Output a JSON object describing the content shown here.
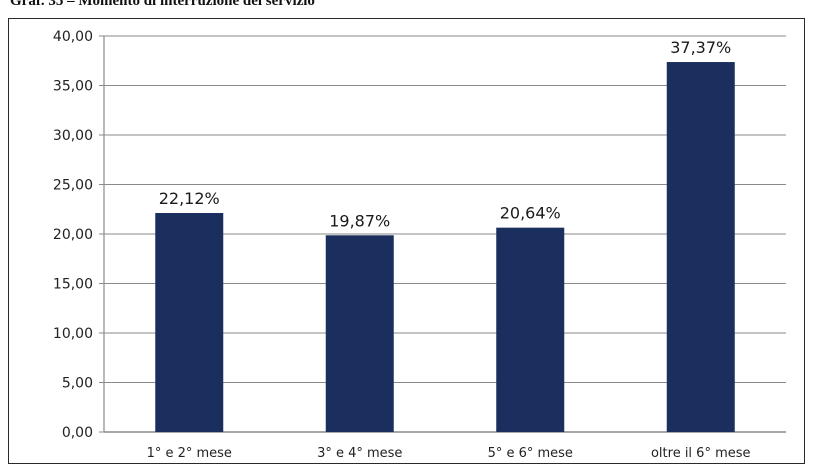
{
  "caption": "Graf. 35 – Momento di interruzione del servizio",
  "chart_data": {
    "type": "bar",
    "title": "",
    "xlabel": "",
    "ylabel": "",
    "categories": [
      "1° e 2° mese",
      "3° e 4° mese",
      "5° e 6° mese",
      "oltre il 6° mese"
    ],
    "values": [
      22.12,
      19.87,
      20.64,
      37.37
    ],
    "data_labels": [
      "22,12%",
      "19,87%",
      "20,64%",
      "37,37%"
    ],
    "ylim": [
      0,
      40
    ],
    "yticks": [
      "0,00",
      "5,00",
      "10,00",
      "15,00",
      "20,00",
      "25,00",
      "30,00",
      "35,00",
      "40,00"
    ],
    "grid": true,
    "legend": "none",
    "bar_color": "#1b2f5e",
    "grid_color": "#8a8a8a"
  }
}
